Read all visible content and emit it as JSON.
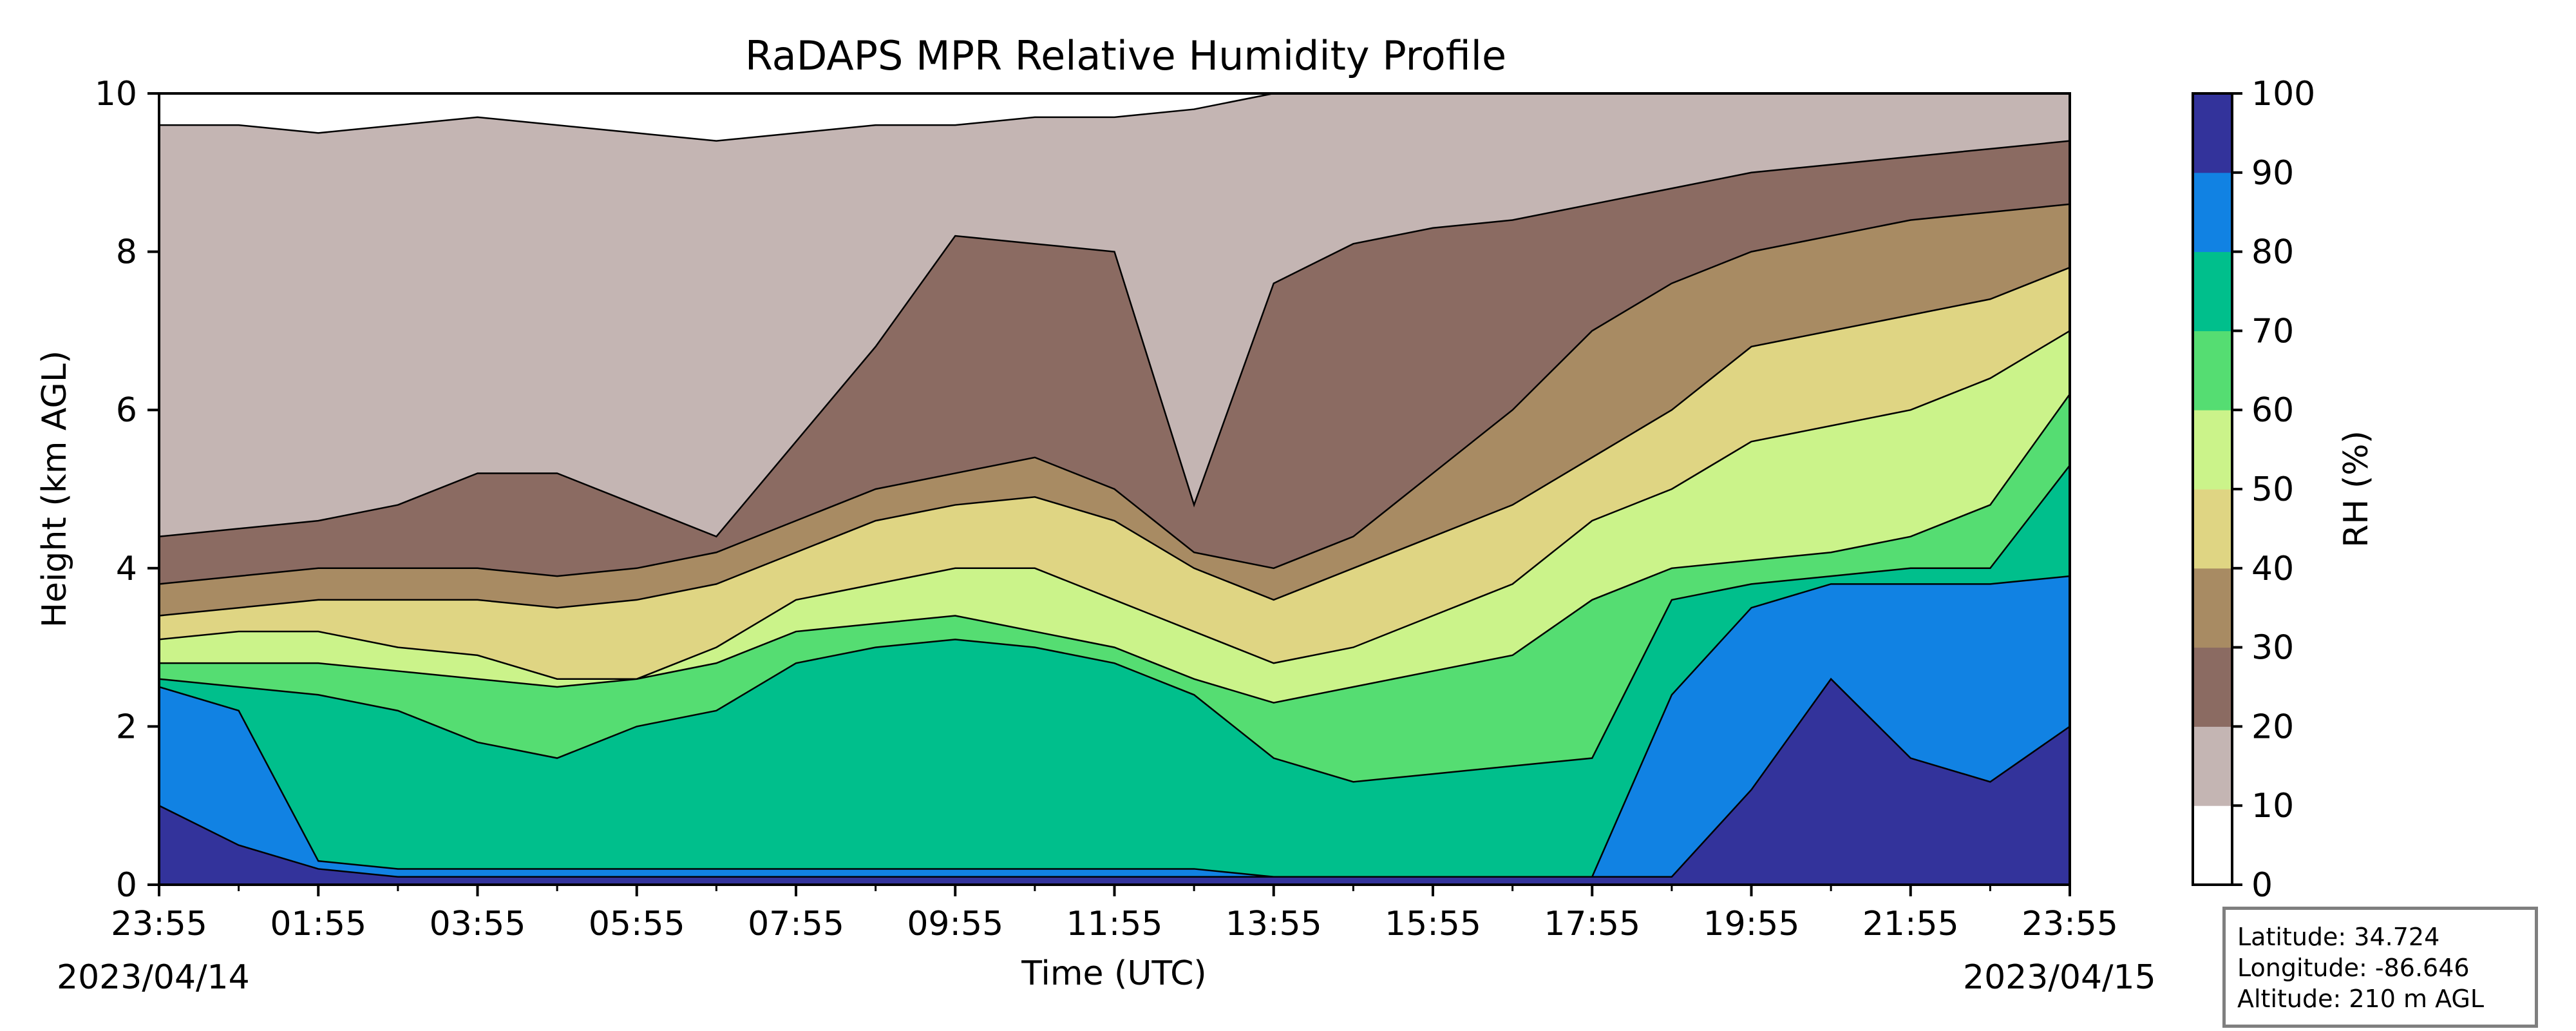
{
  "chart_data": {
    "type": "heatmap",
    "subtype": "filled-contour",
    "title": "RaDAPS MPR Relative Humidity Profile",
    "xlabel": "Time (UTC)",
    "ylabel": "Height (km AGL)",
    "ylim": [
      0,
      10
    ],
    "yticks": [
      "0",
      "2",
      "4",
      "6",
      "8",
      "10"
    ],
    "xticks": [
      "23:55",
      "01:55",
      "03:55",
      "05:55",
      "07:55",
      "09:55",
      "11:55",
      "13:55",
      "15:55",
      "17:55",
      "19:55",
      "21:55",
      "23:55"
    ],
    "start_date": "2023/04/14",
    "end_date": "2023/04/15",
    "x_hours": [
      0,
      1,
      2,
      3,
      4,
      5,
      6,
      7,
      8,
      9,
      10,
      11,
      12,
      13,
      14,
      15,
      16,
      17,
      18,
      19,
      20,
      21,
      22,
      23,
      24
    ],
    "colorbar": {
      "label": "RH (%)",
      "ticks": [
        "0",
        "10",
        "20",
        "30",
        "40",
        "50",
        "60",
        "70",
        "80",
        "90",
        "100"
      ],
      "levels": [
        0,
        10,
        20,
        30,
        40,
        50,
        60,
        70,
        80,
        90,
        100
      ],
      "colors": [
        "#ffffff",
        "#c4b5b3",
        "#8b6b62",
        "#a88b63",
        "#dfd583",
        "#cbf38a",
        "#55dd72",
        "#00bf8c",
        "#1182e3",
        "#33339b"
      ]
    },
    "contour_levels_km": [
      {
        "rh": 90,
        "heights": [
          1.0,
          0.5,
          0.2,
          0.1,
          0.1,
          0.1,
          0.1,
          0.1,
          0.1,
          0.1,
          0.1,
          0.1,
          0.1,
          0.1,
          0.1,
          0.1,
          0.1,
          0.1,
          0.1,
          0.1,
          1.2,
          2.6,
          1.6,
          1.3,
          2.0
        ]
      },
      {
        "rh": 80,
        "heights": [
          2.5,
          2.2,
          0.3,
          0.2,
          0.2,
          0.2,
          0.2,
          0.2,
          0.2,
          0.2,
          0.2,
          0.2,
          0.2,
          0.2,
          0.1,
          0.1,
          0.1,
          0.1,
          0.1,
          2.4,
          3.5,
          3.8,
          3.8,
          3.8,
          3.9
        ]
      },
      {
        "rh": 70,
        "heights": [
          2.6,
          2.5,
          2.4,
          2.2,
          1.8,
          1.6,
          2.0,
          2.2,
          2.8,
          3.0,
          3.1,
          3.0,
          2.8,
          2.4,
          1.6,
          1.3,
          1.4,
          1.5,
          1.6,
          3.6,
          3.8,
          3.9,
          4.0,
          4.0,
          5.3
        ]
      },
      {
        "rh": 60,
        "heights": [
          2.8,
          2.8,
          2.8,
          2.7,
          2.6,
          2.5,
          2.6,
          2.8,
          3.2,
          3.3,
          3.4,
          3.2,
          3.0,
          2.6,
          2.3,
          2.5,
          2.7,
          2.9,
          3.6,
          4.0,
          4.1,
          4.2,
          4.4,
          4.8,
          6.2
        ]
      },
      {
        "rh": 50,
        "heights": [
          3.1,
          3.2,
          3.2,
          3.0,
          2.9,
          2.6,
          2.6,
          3.0,
          3.6,
          3.8,
          4.0,
          4.0,
          3.6,
          3.2,
          2.8,
          3.0,
          3.4,
          3.8,
          4.6,
          5.0,
          5.6,
          5.8,
          6.0,
          6.4,
          7.0
        ]
      },
      {
        "rh": 40,
        "heights": [
          3.4,
          3.5,
          3.6,
          3.6,
          3.6,
          3.5,
          3.6,
          3.8,
          4.2,
          4.6,
          4.8,
          4.9,
          4.6,
          4.0,
          3.6,
          4.0,
          4.4,
          4.8,
          5.4,
          6.0,
          6.8,
          7.0,
          7.2,
          7.4,
          7.8
        ]
      },
      {
        "rh": 30,
        "heights": [
          3.8,
          3.9,
          4.0,
          4.0,
          4.0,
          3.9,
          4.0,
          4.2,
          4.6,
          5.0,
          5.2,
          5.4,
          5.0,
          4.2,
          4.0,
          4.4,
          5.2,
          6.0,
          7.0,
          7.6,
          8.0,
          8.2,
          8.4,
          8.5,
          8.6
        ]
      },
      {
        "rh": 20,
        "heights": [
          4.4,
          4.5,
          4.6,
          4.8,
          5.2,
          5.2,
          4.8,
          4.4,
          5.6,
          6.8,
          8.2,
          8.1,
          8.0,
          4.8,
          7.6,
          8.1,
          8.3,
          8.4,
          8.6,
          8.8,
          9.0,
          9.1,
          9.2,
          9.3,
          9.4
        ]
      },
      {
        "rh": 10,
        "heights": [
          9.6,
          9.6,
          9.5,
          9.6,
          9.7,
          9.6,
          9.5,
          9.4,
          9.5,
          9.6,
          9.6,
          9.7,
          9.7,
          9.8,
          10,
          10,
          10,
          10,
          10,
          10,
          10,
          10,
          10,
          10,
          10
        ]
      }
    ]
  },
  "site_info": {
    "latitude": "Latitude: 34.724",
    "longitude": "Longitude: -86.646",
    "altitude": "Altitude: 210 m AGL"
  }
}
